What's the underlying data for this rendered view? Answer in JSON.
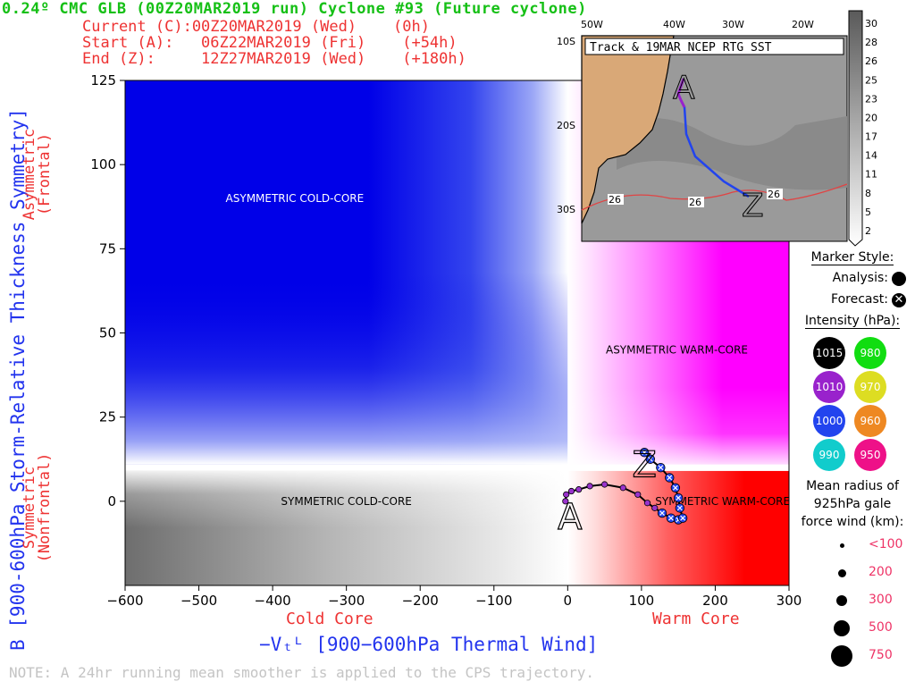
{
  "header": {
    "title": "0.24º CMC GLB (00Z20MAR2019 run) Cyclone #93 (Future cyclone)",
    "line_current": "Current (C):00Z20MAR2019 (Wed)    (0h)",
    "line_start": "Start (A):   06Z22MAR2019 (Fri)    (+54h)",
    "line_end": "End (Z):     12Z27MAR2019 (Wed)    (+180h)"
  },
  "labels": {
    "y_axis": "B [900-600hPa Storm-Relative Thickness Symmetry]",
    "x_axis": "−Vₜᴸ [900−600hPa Thermal Wind]",
    "cold_core": "Cold Core",
    "warm_core": "Warm Core",
    "asym_side": "Asymmetric\n(Frontal)",
    "sym_side": "Symmetric\n(Nonfrontal)",
    "note": "NOTE:  A 24hr running mean smoother is applied to the CPS trajectory."
  },
  "chart_data": {
    "type": "scatter",
    "title": "",
    "xlabel": "−Vₜᴸ [900−600hPa Thermal Wind]",
    "ylabel": "B [900-600hPa Storm-Relative Thickness Symmetry]",
    "xlim": [
      -600,
      300
    ],
    "ylim": [
      -25,
      125
    ],
    "xticks": [
      -600,
      -500,
      -400,
      -300,
      -200,
      -100,
      0,
      100,
      200,
      300
    ],
    "yticks": [
      0,
      25,
      50,
      75,
      100,
      125
    ],
    "xtick_labels": [
      "−600",
      "−500",
      "−400",
      "−300",
      "−200",
      "−100",
      "0",
      "100",
      "200",
      "300"
    ],
    "ytick_labels": [
      "0",
      "25",
      "50",
      "75",
      "100",
      "125"
    ],
    "quadrants": [
      {
        "name": "ASYMMETRIC COLD-CORE",
        "x": -370,
        "y": 90
      },
      {
        "name": "ASYMMETRIC WARM-CORE",
        "x": 148,
        "y": 45
      },
      {
        "name": "SYMMETRIC COLD-CORE",
        "x": -300,
        "y": 0
      },
      {
        "name": "SYMMETRIC WARM-CORE",
        "x": 210,
        "y": 0
      }
    ],
    "colors": {
      "cold": "#0000ee",
      "warm_asym": "#ff00ff",
      "warm_sym": "#ff0000",
      "cold_sym": "#555555"
    },
    "series": [
      {
        "name": "CPS trajectory",
        "points": [
          {
            "x": -3,
            "y": 0,
            "kind": "analysis",
            "color": "#9933cc"
          },
          {
            "x": -2,
            "y": 2,
            "kind": "analysis",
            "color": "#9933cc"
          },
          {
            "x": 5,
            "y": 3,
            "kind": "analysis",
            "color": "#9933cc"
          },
          {
            "x": 15,
            "y": 3.5,
            "kind": "analysis",
            "color": "#9933cc"
          },
          {
            "x": 30,
            "y": 4.5,
            "kind": "analysis",
            "color": "#9933cc"
          },
          {
            "x": 50,
            "y": 5,
            "kind": "analysis",
            "color": "#9933cc"
          },
          {
            "x": 75,
            "y": 4,
            "kind": "analysis",
            "color": "#9933cc"
          },
          {
            "x": 95,
            "y": 2,
            "kind": "analysis",
            "color": "#9933cc"
          },
          {
            "x": 108,
            "y": -0.5,
            "kind": "analysis",
            "color": "#9933cc"
          },
          {
            "x": 118,
            "y": -2,
            "kind": "analysis",
            "color": "#9933cc"
          },
          {
            "x": 128,
            "y": -3.5,
            "kind": "forecast",
            "color": "#2244ee"
          },
          {
            "x": 140,
            "y": -5,
            "kind": "forecast",
            "color": "#2244ee"
          },
          {
            "x": 150,
            "y": -5.5,
            "kind": "forecast",
            "color": "#2244ee"
          },
          {
            "x": 156,
            "y": -5,
            "kind": "forecast",
            "color": "#2244ee"
          },
          {
            "x": 152,
            "y": -2,
            "kind": "forecast",
            "color": "#2244ee"
          },
          {
            "x": 150,
            "y": 1,
            "kind": "forecast",
            "color": "#2244ee"
          },
          {
            "x": 146,
            "y": 4,
            "kind": "forecast",
            "color": "#2244ee"
          },
          {
            "x": 138,
            "y": 7,
            "kind": "forecast",
            "color": "#2244ee"
          },
          {
            "x": 126,
            "y": 10,
            "kind": "forecast",
            "color": "#2244ee"
          },
          {
            "x": 112,
            "y": 12.5,
            "kind": "forecast",
            "color": "#2244ee"
          },
          {
            "x": 104,
            "y": 14.5,
            "kind": "forecast",
            "color": "#2244ee"
          }
        ]
      }
    ],
    "start_marker": {
      "label": "A",
      "x": 3,
      "y": -3
    },
    "end_marker": {
      "label": "Z",
      "x": 104,
      "y": 11
    }
  },
  "inset": {
    "title": "Track & 19MAR NCEP RTG SST",
    "lon_labels": [
      "50W",
      "40W",
      "30W",
      "20W"
    ],
    "lat_labels": [
      "10S",
      "20S",
      "30S"
    ],
    "sst_labels": [
      "26",
      "26",
      "26"
    ],
    "colorbar_ticks": [
      "30",
      "28",
      "26",
      "25",
      "23",
      "20",
      "17",
      "14",
      "11",
      "8",
      "5",
      "2"
    ],
    "start_label": "A",
    "end_label": "Z"
  },
  "legend": {
    "marker_style": "Marker Style:",
    "analysis": "Analysis:",
    "forecast": "Forecast:",
    "intensity_title": "Intensity (hPa):",
    "intensity": [
      {
        "value": "1015",
        "color": "#000000"
      },
      {
        "value": "980",
        "color": "#11dd11"
      },
      {
        "value": "1010",
        "color": "#9922cc"
      },
      {
        "value": "970",
        "color": "#dddd22"
      },
      {
        "value": "1000",
        "color": "#2244ee"
      },
      {
        "value": "960",
        "color": "#ee8822"
      },
      {
        "value": "990",
        "color": "#11cccc"
      },
      {
        "value": "950",
        "color": "#ee1188"
      }
    ],
    "radius_title": "Mean radius of\n925hPa gale\nforce wind (km):",
    "radius": [
      "<100",
      "200",
      "300",
      "500",
      "750"
    ]
  }
}
